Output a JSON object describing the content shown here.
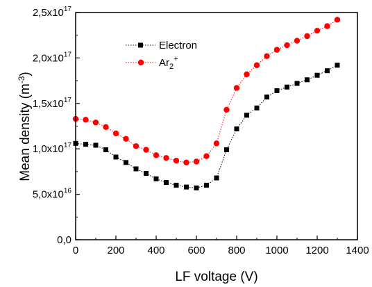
{
  "chart_data": {
    "type": "line",
    "xlabel": "LF voltage (V)",
    "ylabel": "Mean density (m",
    "ylabel_sup": "-3",
    "ylabel_end": ")",
    "xlim": [
      0,
      1400
    ],
    "ylim": [
      0,
      2.5e+17
    ],
    "x_ticks": [
      "0",
      "200",
      "400",
      "600",
      "800",
      "1000",
      "1200",
      "1400"
    ],
    "y_ticks": [
      {
        "mant": "0,0",
        "exp": ""
      },
      {
        "mant": "5,0x10",
        "exp": "16"
      },
      {
        "mant": "1,0x10",
        "exp": "17"
      },
      {
        "mant": "1,5x10",
        "exp": "17"
      },
      {
        "mant": "2,0x10",
        "exp": "17"
      },
      {
        "mant": "2,5x10",
        "exp": "17"
      }
    ],
    "legend_position": "top-left",
    "series": [
      {
        "name": "Electron",
        "color": "#000000",
        "marker": "square",
        "line_style": "dotted",
        "x": [
          0,
          50,
          100,
          150,
          200,
          250,
          300,
          350,
          400,
          450,
          500,
          550,
          600,
          650,
          700,
          750,
          800,
          850,
          900,
          950,
          1000,
          1050,
          1100,
          1150,
          1200,
          1250,
          1300
        ],
        "y": [
          1.06e+17,
          1.05e+17,
          1.04e+17,
          9.9e+16,
          9.1e+16,
          8.5e+16,
          7.8e+16,
          7.3e+16,
          6.7e+16,
          6.3e+16,
          6e+16,
          5.8e+16,
          5.7e+16,
          6e+16,
          6.8e+16,
          9.9e+16,
          1.22e+17,
          1.37e+17,
          1.45e+17,
          1.57e+17,
          1.64e+17,
          1.68e+17,
          1.72e+17,
          1.76e+17,
          1.81e+17,
          1.86e+17,
          1.92e+17
        ]
      },
      {
        "name": "Ar",
        "name_sub": "2",
        "name_sup": "+",
        "color": "#ff0000",
        "marker": "circle",
        "line_style": "dotted",
        "x": [
          0,
          50,
          100,
          150,
          200,
          250,
          300,
          350,
          400,
          450,
          500,
          550,
          600,
          650,
          700,
          750,
          800,
          850,
          900,
          950,
          1000,
          1050,
          1100,
          1150,
          1200,
          1250,
          1300
        ],
        "y": [
          1.33e+17,
          1.32e+17,
          1.29e+17,
          1.24e+17,
          1.17e+17,
          1.11e+17,
          1.03e+17,
          9.9e+16,
          9.3e+16,
          9e+16,
          8.7e+16,
          8.5e+16,
          8.6e+16,
          9.2e+16,
          1.06e+17,
          1.43e+17,
          1.67e+17,
          1.82e+17,
          1.92e+17,
          2.02e+17,
          2.09e+17,
          2.14e+17,
          2.19e+17,
          2.24e+17,
          2.3e+17,
          2.35e+17,
          2.42e+17
        ]
      }
    ]
  }
}
